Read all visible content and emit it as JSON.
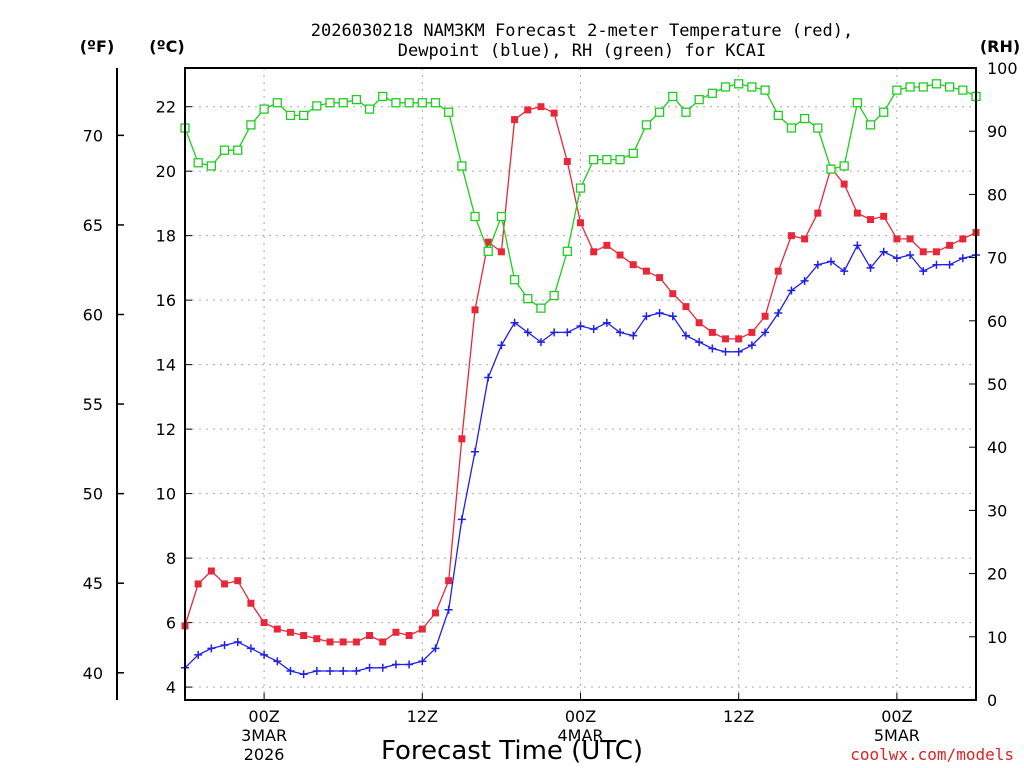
{
  "chart_data": {
    "type": "line",
    "title_line1": "2026030218 NAM3KM Forecast 2-meter Temperature (red),",
    "title_line2": "Dewpoint (blue), RH (green) for KCAI",
    "xlabel": "Forecast Time (UTC)",
    "credit": "coolwx.com/models",
    "left_unit_f": "(ºF)",
    "left_unit_c": "(ºC)",
    "right_unit": "(RH)",
    "x_hours_range": [
      -6,
      54
    ],
    "celsius_range": [
      3.6,
      23.2
    ],
    "rh_range": [
      0,
      100
    ],
    "celsius_ticks": [
      "4",
      "6",
      "8",
      "10",
      "12",
      "14",
      "16",
      "18",
      "20",
      "22"
    ],
    "fahrenheit_ticks": [
      "40",
      "45",
      "50",
      "55",
      "60",
      "65",
      "70"
    ],
    "rh_ticks": [
      "0",
      "10",
      "20",
      "30",
      "40",
      "50",
      "60",
      "70",
      "80",
      "90",
      "100"
    ],
    "x_ticks": [
      {
        "hour": 0,
        "line1": "00Z",
        "line2": "3MAR",
        "line3": "2026"
      },
      {
        "hour": 12,
        "line1": "12Z",
        "line2": "",
        "line3": ""
      },
      {
        "hour": 24,
        "line1": "00Z",
        "line2": "4MAR",
        "line3": ""
      },
      {
        "hour": 36,
        "line1": "12Z",
        "line2": "",
        "line3": ""
      },
      {
        "hour": 48,
        "line1": "00Z",
        "line2": "5MAR",
        "line3": ""
      }
    ],
    "hours": [
      -6,
      -5,
      -4,
      -3,
      -2,
      -1,
      0,
      1,
      2,
      3,
      4,
      5,
      6,
      7,
      8,
      9,
      10,
      11,
      12,
      13,
      14,
      15,
      16,
      17,
      18,
      19,
      20,
      21,
      22,
      23,
      24,
      25,
      26,
      27,
      28,
      29,
      30,
      31,
      32,
      33,
      34,
      35,
      36,
      37,
      38,
      39,
      40,
      41,
      42,
      43,
      44,
      45,
      46,
      47,
      48,
      49,
      50,
      51,
      52,
      53,
      54
    ],
    "series": [
      {
        "name": "Temperature",
        "color": "#e8283a",
        "marker": "filled-square",
        "values": [
          5.9,
          7.2,
          7.6,
          7.2,
          7.3,
          6.6,
          6.0,
          5.8,
          5.7,
          5.6,
          5.5,
          5.4,
          5.4,
          5.4,
          5.6,
          5.4,
          5.7,
          5.6,
          5.8,
          6.3,
          7.3,
          11.7,
          15.7,
          17.8,
          17.5,
          21.6,
          21.9,
          22.0,
          21.8,
          20.3,
          18.4,
          17.5,
          17.7,
          17.4,
          17.1,
          16.9,
          16.7,
          16.2,
          15.8,
          15.3,
          15.0,
          14.8,
          14.8,
          15.0,
          15.5,
          16.9,
          18.0,
          17.9,
          18.7,
          20.1,
          19.6,
          18.7,
          18.5,
          18.6,
          17.9,
          17.9,
          17.5,
          17.5,
          17.7,
          17.9,
          18.1
        ]
      },
      {
        "name": "Dewpoint",
        "color": "#2020e8",
        "marker": "plus",
        "values": [
          4.6,
          5.0,
          5.2,
          5.3,
          5.4,
          5.2,
          5.0,
          4.8,
          4.5,
          4.4,
          4.5,
          4.5,
          4.5,
          4.5,
          4.6,
          4.6,
          4.7,
          4.7,
          4.8,
          5.2,
          6.4,
          9.2,
          11.3,
          13.6,
          14.6,
          15.3,
          15.0,
          14.7,
          15.0,
          15.0,
          15.2,
          15.1,
          15.3,
          15.0,
          14.9,
          15.5,
          15.6,
          15.5,
          14.9,
          14.7,
          14.5,
          14.4,
          14.4,
          14.6,
          15.0,
          15.6,
          16.3,
          16.6,
          17.1,
          17.2,
          16.9,
          17.7,
          17.0,
          17.5,
          17.3,
          17.4,
          16.9,
          17.1,
          17.1,
          17.3,
          17.4
        ]
      },
      {
        "name": "RH",
        "color": "#20cc20",
        "marker": "open-square",
        "values": [
          90.5,
          85.0,
          84.5,
          87.0,
          87.0,
          91.0,
          93.5,
          94.5,
          92.5,
          92.5,
          94.0,
          94.5,
          94.5,
          95.0,
          93.5,
          95.5,
          94.5,
          94.5,
          94.5,
          94.5,
          93.0,
          84.5,
          76.5,
          71.0,
          76.5,
          66.5,
          63.5,
          62.0,
          64.0,
          71.0,
          81.0,
          85.5,
          85.5,
          85.5,
          86.5,
          91.0,
          93.0,
          95.5,
          93.0,
          95.0,
          96.0,
          97.0,
          97.5,
          97.0,
          96.5,
          92.5,
          90.5,
          92.0,
          90.5,
          84.0,
          84.5,
          94.5,
          91.0,
          93.0,
          96.5,
          97.0,
          97.0,
          97.5,
          97.0,
          96.5,
          95.5
        ]
      }
    ]
  }
}
